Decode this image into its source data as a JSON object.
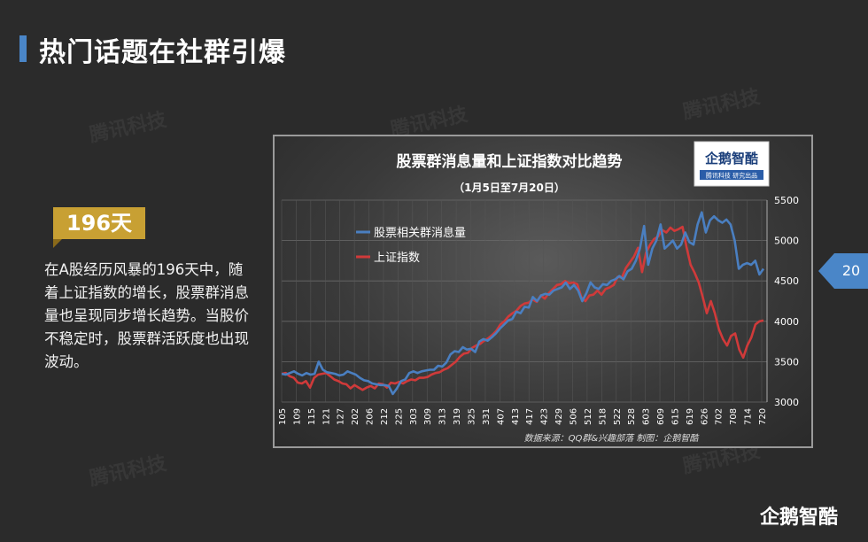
{
  "header": {
    "title": "热门话题在社群引爆"
  },
  "watermark_text": "腾讯科技",
  "badge": {
    "label": "196天",
    "color": "#c8a033"
  },
  "body_text": "在A股经历风暴的196天中，随着上证指数的增长，股票群消息量也呈现同步增长趋势。当股价不稳定时，股票群活跃度也出现波动。",
  "page_number": "20",
  "footer_logo": "企鹅智酷",
  "chart_logo": {
    "name": "企鹅智酷",
    "sub": "腾讯科技  研究出品"
  },
  "chart_data": {
    "type": "line",
    "title": "股票群消息量和上证指数对比趋势",
    "subtitle": "（1月5日至7月20日）",
    "source": "数据来源：QQ群&兴趣部落    制图：企鹅智酷",
    "legend_position": "top-left",
    "x_labels": [
      "105",
      "109",
      "115",
      "121",
      "127",
      "202",
      "206",
      "212",
      "225",
      "303",
      "309",
      "313",
      "319",
      "325",
      "331",
      "407",
      "413",
      "417",
      "423",
      "429",
      "506",
      "512",
      "518",
      "522",
      "528",
      "603",
      "609",
      "615",
      "619",
      "626",
      "702",
      "708",
      "714",
      "720"
    ],
    "y_right": {
      "ticks": [
        3000,
        3500,
        4000,
        4500,
        5000,
        5500
      ],
      "ylim": [
        3000,
        5500
      ]
    },
    "series": [
      {
        "name": "股票相关群消息量",
        "color": "#4a7fc1",
        "values": [
          3350,
          3340,
          3360,
          3380,
          3350,
          3330,
          3360,
          3340,
          3350,
          3500,
          3400,
          3370,
          3360,
          3350,
          3330,
          3340,
          3380,
          3360,
          3340,
          3300,
          3270,
          3260,
          3230,
          3220,
          3210,
          3210,
          3200,
          3100,
          3170,
          3260,
          3280,
          3360,
          3380,
          3360,
          3380,
          3390,
          3400,
          3400,
          3450,
          3440,
          3490,
          3590,
          3630,
          3620,
          3680,
          3650,
          3660,
          3620,
          3750,
          3780,
          3760,
          3800,
          3850,
          3910,
          3960,
          4010,
          4030,
          4120,
          4100,
          4180,
          4170,
          4300,
          4250,
          4320,
          4340,
          4330,
          4380,
          4400,
          4420,
          4480,
          4400,
          4450,
          4380,
          4250,
          4350,
          4480,
          4420,
          4400,
          4460,
          4450,
          4500,
          4520,
          4560,
          4520,
          4620,
          4650,
          4750,
          4900,
          5180,
          4700,
          4900,
          5000,
          5200,
          4900,
          4950,
          5000,
          4900,
          4950,
          5100,
          4980,
          4950,
          5200,
          5350,
          5100,
          5250,
          5300,
          5250,
          5220,
          5260,
          5200,
          5000,
          4650,
          4700,
          4720,
          4700,
          4750,
          4580,
          4650
        ]
      },
      {
        "name": "上证指数",
        "color": "#d03a3a",
        "values": [
          3350,
          3360,
          3320,
          3300,
          3240,
          3230,
          3260,
          3180,
          3300,
          3340,
          3350,
          3360,
          3320,
          3280,
          3260,
          3230,
          3220,
          3170,
          3210,
          3180,
          3150,
          3180,
          3200,
          3170,
          3230,
          3220,
          3180,
          3240,
          3230,
          3250,
          3230,
          3260,
          3280,
          3270,
          3300,
          3300,
          3310,
          3340,
          3360,
          3370,
          3400,
          3420,
          3460,
          3500,
          3560,
          3600,
          3610,
          3670,
          3700,
          3720,
          3760,
          3790,
          3830,
          3880,
          3960,
          4000,
          4060,
          4100,
          4130,
          4190,
          4220,
          4230,
          4270,
          4240,
          4320,
          4280,
          4350,
          4400,
          4450,
          4460,
          4500,
          4470,
          4480,
          4460,
          4300,
          4250,
          4320,
          4330,
          4380,
          4330,
          4400,
          4420,
          4450,
          4550,
          4540,
          4660,
          4730,
          4800,
          4910,
          4610,
          4850,
          4950,
          5020,
          5050,
          5130,
          5100,
          5160,
          5120,
          5140,
          5170,
          4920,
          4700,
          4600,
          4480,
          4300,
          4100,
          4250,
          4100,
          3900,
          3780,
          3700,
          3820,
          3850,
          3650,
          3550,
          3700,
          3800,
          3960,
          4000,
          4010
        ]
      }
    ]
  }
}
